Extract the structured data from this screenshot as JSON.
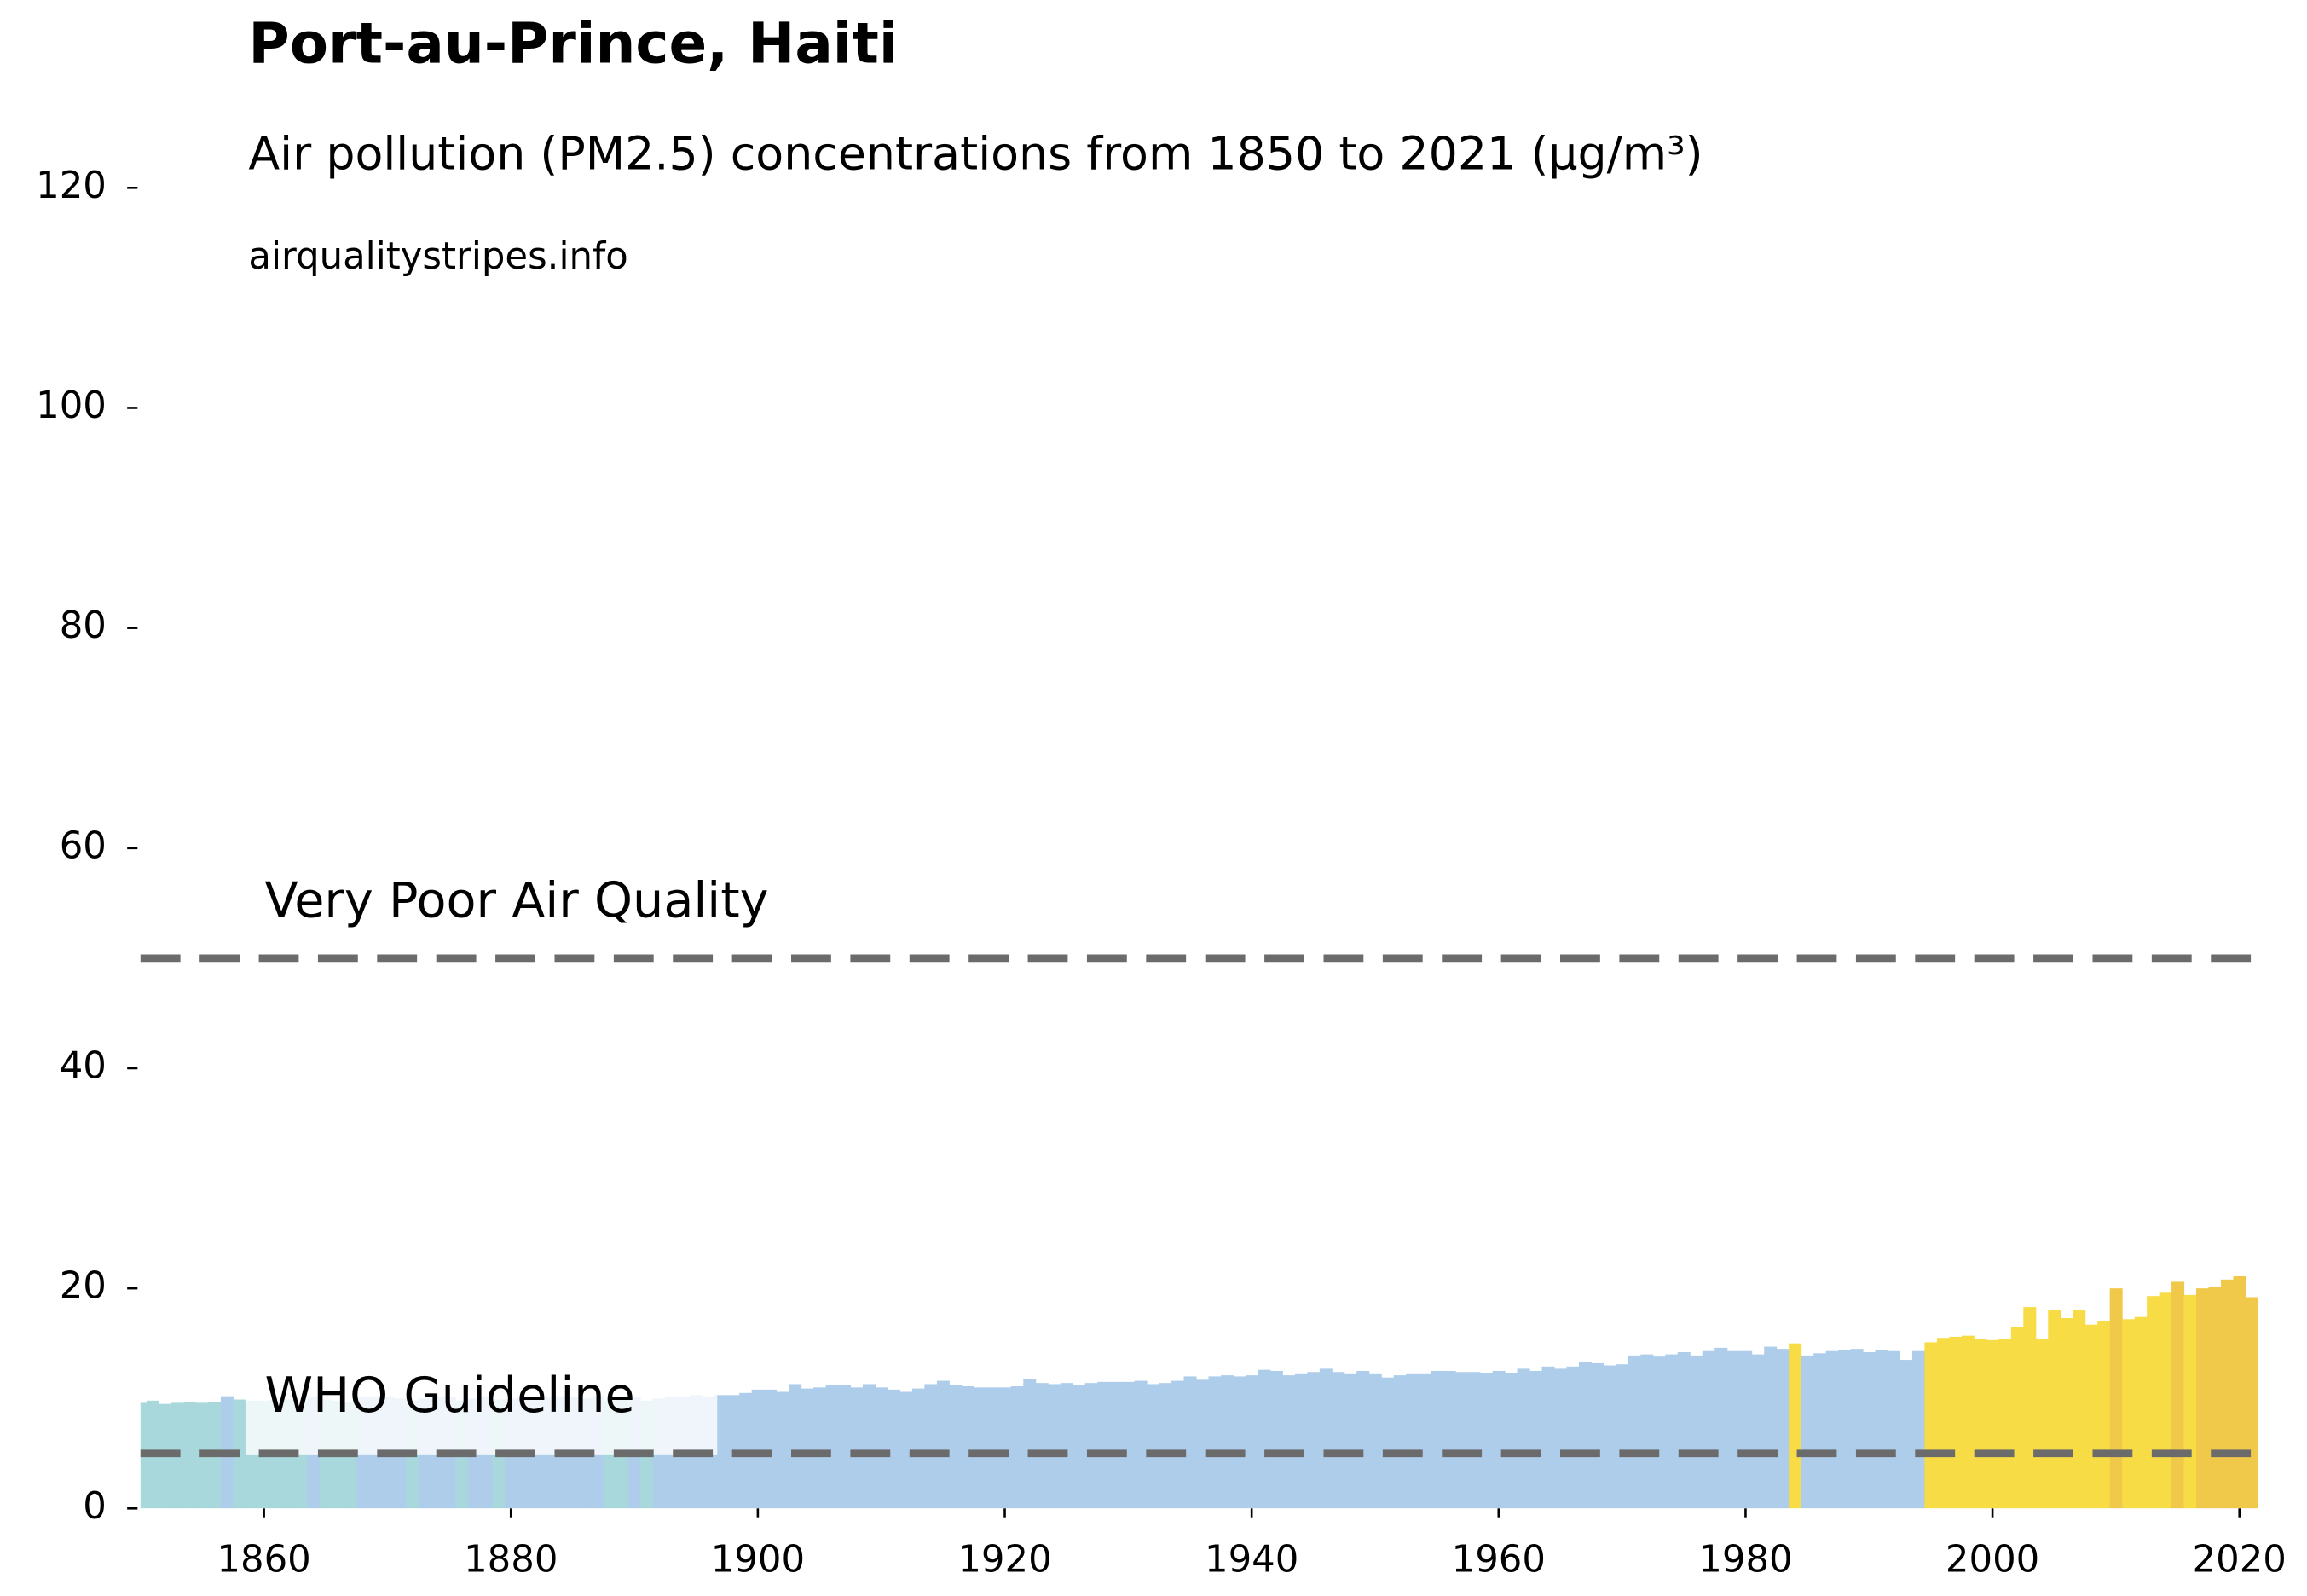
{
  "chart_data": {
    "type": "bar",
    "title": "Port-au-Prince, Haiti",
    "subtitle": "Air pollution (PM2.5) concentrations from 1850 to 2021 (µg/m³)",
    "source": "airqualitystripes.info",
    "x": [
      1850,
      1851,
      1852,
      1853,
      1854,
      1855,
      1856,
      1857,
      1858,
      1859,
      1860,
      1861,
      1862,
      1863,
      1864,
      1865,
      1866,
      1867,
      1868,
      1869,
      1870,
      1871,
      1872,
      1873,
      1874,
      1875,
      1876,
      1877,
      1878,
      1879,
      1880,
      1881,
      1882,
      1883,
      1884,
      1885,
      1886,
      1887,
      1888,
      1889,
      1890,
      1891,
      1892,
      1893,
      1894,
      1895,
      1896,
      1897,
      1898,
      1899,
      1900,
      1901,
      1902,
      1903,
      1904,
      1905,
      1906,
      1907,
      1908,
      1909,
      1910,
      1911,
      1912,
      1913,
      1914,
      1915,
      1916,
      1917,
      1918,
      1919,
      1920,
      1921,
      1922,
      1923,
      1924,
      1925,
      1926,
      1927,
      1928,
      1929,
      1930,
      1931,
      1932,
      1933,
      1934,
      1935,
      1936,
      1937,
      1938,
      1939,
      1940,
      1941,
      1942,
      1943,
      1944,
      1945,
      1946,
      1947,
      1948,
      1949,
      1950,
      1951,
      1952,
      1953,
      1954,
      1955,
      1956,
      1957,
      1958,
      1959,
      1960,
      1961,
      1962,
      1963,
      1964,
      1965,
      1966,
      1967,
      1968,
      1969,
      1970,
      1971,
      1972,
      1973,
      1974,
      1975,
      1976,
      1977,
      1978,
      1979,
      1980,
      1981,
      1982,
      1983,
      1984,
      1985,
      1986,
      1987,
      1988,
      1989,
      1990,
      1991,
      1992,
      1993,
      1994,
      1995,
      1996,
      1997,
      1998,
      1999,
      2000,
      2001,
      2002,
      2003,
      2004,
      2005,
      2006,
      2007,
      2008,
      2009,
      2010,
      2011,
      2012,
      2013,
      2014,
      2015,
      2016,
      2017,
      2018,
      2019,
      2020,
      2021
    ],
    "values": [
      9.6,
      9.8,
      9.5,
      9.6,
      9.7,
      9.6,
      9.7,
      10.2,
      9.9,
      9.8,
      9.8,
      9.9,
      9.9,
      9.7,
      10.1,
      9.9,
      9.8,
      9.7,
      10.1,
      10.2,
      10.1,
      10.0,
      9.8,
      10.0,
      10.1,
      10.1,
      9.8,
      10.0,
      10.2,
      9.9,
      10.0,
      10.1,
      10.0,
      10.1,
      10.2,
      10.1,
      10.0,
      10.2,
      9.8,
      9.9,
      10.1,
      9.8,
      10.0,
      10.2,
      10.1,
      10.3,
      10.2,
      10.3,
      10.3,
      10.5,
      10.8,
      10.8,
      10.6,
      11.3,
      10.9,
      11.0,
      11.2,
      11.2,
      11.0,
      11.3,
      11.0,
      10.8,
      10.6,
      10.9,
      11.3,
      11.6,
      11.2,
      11.1,
      11.0,
      11.0,
      11.0,
      11.1,
      11.8,
      11.4,
      11.3,
      11.4,
      11.2,
      11.4,
      11.5,
      11.5,
      11.5,
      11.6,
      11.3,
      11.4,
      11.6,
      12.0,
      11.7,
      12.0,
      12.1,
      12.0,
      12.1,
      12.6,
      12.5,
      12.1,
      12.2,
      12.4,
      12.7,
      12.4,
      12.2,
      12.5,
      12.2,
      11.9,
      12.1,
      12.2,
      12.2,
      12.5,
      12.5,
      12.4,
      12.4,
      12.3,
      12.5,
      12.3,
      12.7,
      12.5,
      12.9,
      12.7,
      12.9,
      13.3,
      13.2,
      13.0,
      13.1,
      13.9,
      14.0,
      13.8,
      14.0,
      14.2,
      13.9,
      14.3,
      14.6,
      14.3,
      14.3,
      14.0,
      14.7,
      14.5,
      15.0,
      13.9,
      14.1,
      14.3,
      14.4,
      14.5,
      14.2,
      14.4,
      14.3,
      13.5,
      14.3,
      15.1,
      15.5,
      15.6,
      15.7,
      15.4,
      15.3,
      15.4,
      16.5,
      18.3,
      15.4,
      18.0,
      17.3,
      18.0,
      16.7,
      17.0,
      20.0,
      17.2,
      17.4,
      19.3,
      19.6,
      20.6,
      19.4,
      20.0,
      20.1,
      20.8,
      21.1,
      19.2
    ],
    "colors": [
      "#a8d8dc",
      "#a8d8dc",
      "#a8d8dc",
      "#a8d8dc",
      "#a8d8dc",
      "#a8d8dc",
      "#a8d8dc",
      "#aecdeb",
      "#a8d8dc",
      "#a8d8dc",
      "#a8d8dc",
      "#a8d8dc",
      "#a8d8dc",
      "#a8d8dc",
      "#aecdeb",
      "#a8d8dc",
      "#a8d8dc",
      "#a8d8dc",
      "#aecdeb",
      "#aecdeb",
      "#aecdeb",
      "#aecdeb",
      "#a8d8dc",
      "#aecdeb",
      "#aecdeb",
      "#aecdeb",
      "#a8d8dc",
      "#aecdeb",
      "#aecdeb",
      "#a8d8dc",
      "#aecdeb",
      "#aecdeb",
      "#aecdeb",
      "#aecdeb",
      "#aecdeb",
      "#aecdeb",
      "#aecdeb",
      "#aecdeb",
      "#a8d8dc",
      "#a8d8dc",
      "#aecdeb",
      "#a8d8dc",
      "#aecdeb",
      "#aecdeb",
      "#aecdeb",
      "#aecdeb",
      "#aecdeb",
      "#aecdeb",
      "#aecdeb",
      "#aecdeb",
      "#aecdeb",
      "#aecdeb",
      "#aecdeb",
      "#aecdeb",
      "#aecdeb",
      "#aecdeb",
      "#aecdeb",
      "#aecdeb",
      "#aecdeb",
      "#aecdeb",
      "#aecdeb",
      "#aecdeb",
      "#aecdeb",
      "#aecdeb",
      "#aecdeb",
      "#aecdeb",
      "#aecdeb",
      "#aecdeb",
      "#aecdeb",
      "#aecdeb",
      "#aecdeb",
      "#aecdeb",
      "#aecdeb",
      "#aecdeb",
      "#aecdeb",
      "#aecdeb",
      "#aecdeb",
      "#aecdeb",
      "#aecdeb",
      "#aecdeb",
      "#aecdeb",
      "#aecdeb",
      "#aecdeb",
      "#aecdeb",
      "#aecdeb",
      "#aecdeb",
      "#aecdeb",
      "#aecdeb",
      "#aecdeb",
      "#aecdeb",
      "#aecdeb",
      "#aecdeb",
      "#aecdeb",
      "#aecdeb",
      "#aecdeb",
      "#aecdeb",
      "#aecdeb",
      "#aecdeb",
      "#aecdeb",
      "#aecdeb",
      "#aecdeb",
      "#aecdeb",
      "#aecdeb",
      "#aecdeb",
      "#aecdeb",
      "#aecdeb",
      "#aecdeb",
      "#aecdeb",
      "#aecdeb",
      "#aecdeb",
      "#aecdeb",
      "#aecdeb",
      "#aecdeb",
      "#aecdeb",
      "#aecdeb",
      "#aecdeb",
      "#aecdeb",
      "#aecdeb",
      "#aecdeb",
      "#aecdeb",
      "#aecdeb",
      "#aecdeb",
      "#aecdeb",
      "#aecdeb",
      "#aecdeb",
      "#aecdeb",
      "#aecdeb",
      "#aecdeb",
      "#aecdeb",
      "#aecdeb",
      "#aecdeb",
      "#aecdeb",
      "#aecdeb",
      "#aecdeb",
      "#f7dc45",
      "#aecdeb",
      "#aecdeb",
      "#aecdeb",
      "#aecdeb",
      "#aecdeb",
      "#aecdeb",
      "#aecdeb",
      "#aecdeb",
      "#aecdeb",
      "#aecdeb",
      "#f7dc45",
      "#f7dc45",
      "#f7dc45",
      "#f7dc45",
      "#f7dc45",
      "#f7dc45",
      "#f7dc45",
      "#f7dc45",
      "#f7dc45",
      "#f7dc45",
      "#f7dc45",
      "#f7dc45",
      "#f7dc45",
      "#f7dc45",
      "#f7dc45",
      "#f0c84a",
      "#f7dc45",
      "#f7dc45",
      "#f7dc45",
      "#f7dc45",
      "#f0c84a",
      "#f7dc45",
      "#f0c84a",
      "#f0c84a",
      "#f0c84a",
      "#f0c84a",
      "#f0c84a"
    ],
    "hlines": [
      {
        "value": 50,
        "label": "Very Poor Air Quality"
      },
      {
        "value": 5,
        "label": "WHO Guideline"
      }
    ],
    "hline_color": "#6b6b6b",
    "xlim": [
      1850,
      2022
    ],
    "ylim": [
      0,
      120
    ],
    "xticks": [
      1860,
      1880,
      1900,
      1920,
      1940,
      1960,
      1980,
      2000,
      2020
    ],
    "yticks": [
      0,
      20,
      40,
      60,
      80,
      100,
      120
    ]
  }
}
